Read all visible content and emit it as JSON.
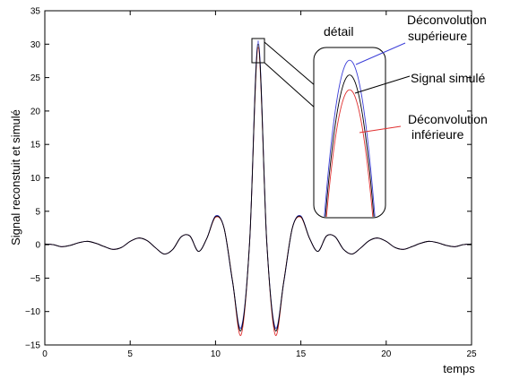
{
  "chart_data": {
    "type": "line",
    "title": "",
    "xlabel": "temps",
    "ylabel": "Signal reconstuit et simulé",
    "xlim": [
      0,
      25
    ],
    "ylim": [
      -15,
      35
    ],
    "xticks": [
      0,
      5,
      10,
      15,
      20,
      25
    ],
    "yticks": [
      -15,
      -10,
      -5,
      0,
      5,
      10,
      15,
      20,
      25,
      30,
      35
    ],
    "xtick_labels": [
      "0",
      "5",
      "10",
      "15",
      "20",
      "25"
    ],
    "ytick_labels": [
      "−15",
      "−10",
      "−5",
      "0",
      "5",
      "10",
      "15",
      "20",
      "25",
      "30",
      "35"
    ],
    "grid": false,
    "series": [
      {
        "name": "Signal simulé",
        "color": "#000000",
        "x": [
          0,
          0.5,
          1,
          1.5,
          2,
          2.5,
          3,
          3.5,
          4,
          4.5,
          5,
          5.5,
          6,
          6.5,
          7,
          7.5,
          8,
          8.5,
          9,
          9.5,
          10,
          10.5,
          11,
          11.5,
          12,
          12.5,
          13,
          13.5,
          14,
          14.5,
          15,
          15.5,
          16,
          16.5,
          17,
          17.5,
          18,
          18.5,
          19,
          19.5,
          20,
          20.5,
          21,
          21.5,
          22,
          22.5,
          23,
          23.5,
          24,
          24.5,
          25
        ],
        "y": [
          0.1,
          0.0,
          -0.3,
          -0.1,
          0.3,
          0.5,
          0.2,
          -0.3,
          -0.7,
          -0.4,
          0.5,
          1.0,
          0.6,
          -0.5,
          -1.4,
          -0.7,
          1.2,
          1.3,
          -1.0,
          1.0,
          4.2,
          2.5,
          -5.5,
          -12.8,
          0.5,
          30.0,
          0.5,
          -12.8,
          -5.5,
          2.5,
          4.2,
          1.0,
          -1.0,
          1.3,
          1.2,
          -0.7,
          -1.4,
          -0.5,
          0.6,
          1.0,
          0.5,
          -0.4,
          -0.7,
          -0.3,
          0.2,
          0.5,
          0.3,
          -0.1,
          -0.3,
          0.0,
          0.1
        ]
      },
      {
        "name": "Déconvolution supérieure",
        "color": "#3b3ed8",
        "x": [
          0,
          0.5,
          1,
          1.5,
          2,
          2.5,
          3,
          3.5,
          4,
          4.5,
          5,
          5.5,
          6,
          6.5,
          7,
          7.5,
          8,
          8.5,
          9,
          9.5,
          10,
          10.5,
          11,
          11.5,
          12,
          12.5,
          13,
          13.5,
          14,
          14.5,
          15,
          15.5,
          16,
          16.5,
          17,
          17.5,
          18,
          18.5,
          19,
          19.5,
          20,
          20.5,
          21,
          21.5,
          22,
          22.5,
          23,
          23.5,
          24,
          24.5,
          25
        ],
        "y": [
          0.1,
          0.0,
          -0.3,
          -0.1,
          0.3,
          0.5,
          0.2,
          -0.3,
          -0.7,
          -0.4,
          0.5,
          1.0,
          0.6,
          -0.5,
          -1.4,
          -0.7,
          1.2,
          1.3,
          -1.0,
          1.0,
          4.3,
          2.5,
          -5.6,
          -12.4,
          0.5,
          30.5,
          0.5,
          -12.4,
          -5.6,
          2.5,
          4.3,
          1.0,
          -1.0,
          1.3,
          1.2,
          -0.7,
          -1.4,
          -0.5,
          0.6,
          1.0,
          0.5,
          -0.4,
          -0.7,
          -0.3,
          0.2,
          0.5,
          0.3,
          -0.1,
          -0.3,
          0.0,
          0.1
        ]
      },
      {
        "name": "Déconvolution inférieure",
        "color": "#e03030",
        "x": [
          0,
          0.5,
          1,
          1.5,
          2,
          2.5,
          3,
          3.5,
          4,
          4.5,
          5,
          5.5,
          6,
          6.5,
          7,
          7.5,
          8,
          8.5,
          9,
          9.5,
          10,
          10.5,
          11,
          11.5,
          12,
          12.5,
          13,
          13.5,
          14,
          14.5,
          15,
          15.5,
          16,
          16.5,
          17,
          17.5,
          18,
          18.5,
          19,
          19.5,
          20,
          20.5,
          21,
          21.5,
          22,
          22.5,
          23,
          23.5,
          24,
          24.5,
          25
        ],
        "y": [
          0.1,
          0.0,
          -0.3,
          -0.1,
          0.3,
          0.5,
          0.2,
          -0.3,
          -0.7,
          -0.4,
          0.5,
          1.0,
          0.6,
          -0.5,
          -1.4,
          -0.7,
          1.2,
          1.3,
          -1.0,
          1.0,
          4.1,
          2.5,
          -5.5,
          -13.5,
          0.5,
          29.5,
          0.5,
          -13.5,
          -5.5,
          2.5,
          4.1,
          1.0,
          -1.0,
          1.3,
          1.2,
          -0.7,
          -1.4,
          -0.5,
          0.6,
          1.0,
          0.5,
          -0.4,
          -0.7,
          -0.3,
          0.2,
          0.5,
          0.3,
          -0.1,
          -0.3,
          0.0,
          0.1
        ]
      }
    ],
    "annotations": {
      "inset_title": "détail",
      "label_upper_line1": "Déconvolution",
      "label_upper_line2": "supérieure",
      "label_sim": "Signal simulé",
      "label_lower_line1": "Déconvolution",
      "label_lower_line2": "inférieure"
    },
    "colors": {
      "axis": "#000000",
      "simulated": "#000000",
      "upper": "#3b3ed8",
      "lower": "#e03030"
    }
  }
}
